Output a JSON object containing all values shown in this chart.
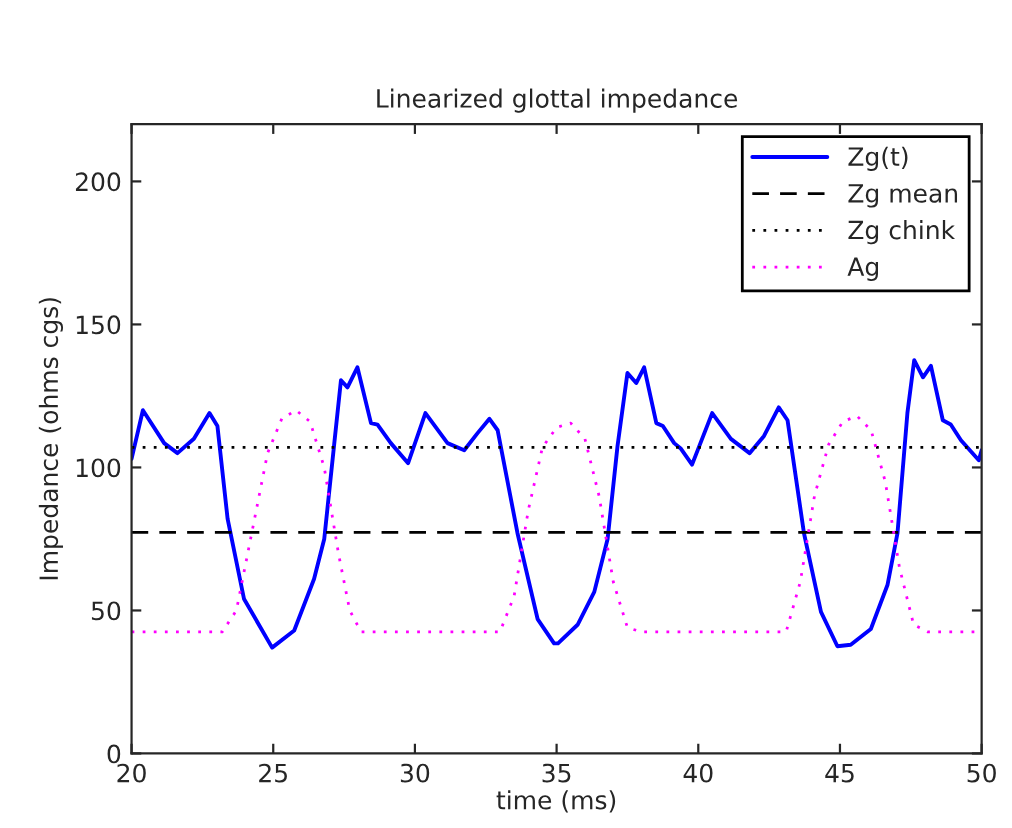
{
  "chart_data": {
    "type": "line",
    "title": "Linearized glottal impedance",
    "xlabel": "time (ms)",
    "ylabel": "Impedance (ohms cgs)",
    "xlim": [
      20,
      50
    ],
    "xticks": [
      20,
      25,
      30,
      35,
      40,
      45,
      50
    ],
    "ylim": [
      0,
      220
    ],
    "yticks": [
      0,
      50,
      100,
      150,
      200
    ],
    "grid": false,
    "legend": "top right",
    "series": [
      {
        "name": "Zg(t)",
        "color": "#0000ff",
        "line_style": "solid",
        "x": [
          20,
          20.4,
          21.15,
          21.62,
          22.2,
          22.75,
          23.03,
          23.39,
          23.97,
          24.96,
          25.74,
          26.44,
          26.8,
          27.15,
          27.39,
          27.62,
          27.97,
          28.45,
          28.68,
          29.15,
          29.76,
          30.37,
          31.15,
          31.74,
          32.21,
          32.63,
          32.92,
          33.62,
          34.33,
          34.91,
          35.05,
          35.74,
          36.33,
          36.8,
          37.15,
          37.5,
          37.81,
          38.09,
          38.52,
          38.75,
          39.15,
          39.39,
          39.78,
          40.49,
          41.15,
          41.81,
          42.32,
          42.84,
          43.15,
          43.73,
          44.33,
          44.91,
          45.38,
          46.09,
          46.68,
          47.03,
          47.38,
          47.62,
          47.93,
          48.21,
          48.63,
          48.91,
          49.27,
          49.9,
          50
        ],
        "values": [
          103,
          120,
          108.5,
          105,
          110,
          119,
          114.5,
          82,
          54,
          37,
          43,
          61,
          75,
          108,
          130.5,
          128,
          135,
          115.5,
          115,
          108.5,
          101.5,
          119,
          108.5,
          106,
          112,
          117,
          113,
          77,
          47,
          38.5,
          38.5,
          45,
          56.5,
          75,
          107.5,
          133,
          129.5,
          135,
          115.5,
          114.5,
          108.5,
          106.5,
          101,
          119,
          110,
          105,
          111,
          121,
          116.5,
          77,
          49.5,
          37.5,
          38,
          43.5,
          59,
          77,
          119,
          137.5,
          131.5,
          135.5,
          116.5,
          115,
          109.5,
          102.5,
          106
        ]
      },
      {
        "name": "Zg mean",
        "color": "#000000",
        "line_style": "dashed",
        "x": [
          20,
          50
        ],
        "values": [
          77.3,
          77.3
        ]
      },
      {
        "name": "Zg chink",
        "color": "#000000",
        "line_style": "dotted",
        "x": [
          20,
          50
        ],
        "values": [
          107,
          107
        ]
      },
      {
        "name": "Ag",
        "color": "#ff00ff",
        "line_style": "dotted",
        "x": [
          20,
          23.2,
          23.7,
          24.3,
          24.8,
          25.3,
          25.8,
          26.3,
          26.8,
          27.3,
          27.7,
          28.1,
          33.0,
          33.5,
          34.0,
          34.5,
          35.0,
          35.5,
          36.0,
          36.5,
          37.0,
          37.5,
          38.0,
          43.1,
          43.6,
          44.1,
          44.6,
          45.1,
          45.6,
          46.1,
          46.6,
          47.1,
          47.6,
          48.1,
          50
        ],
        "values": [
          42.5,
          42.5,
          50,
          80,
          105,
          117,
          120,
          116,
          100,
          70,
          50,
          42.5,
          42.5,
          55,
          85,
          107,
          114,
          115.5,
          110,
          90,
          60,
          44,
          42.5,
          42.5,
          60,
          90,
          108,
          116,
          118,
          113,
          95,
          65,
          45,
          42.5,
          42.5
        ]
      }
    ]
  }
}
